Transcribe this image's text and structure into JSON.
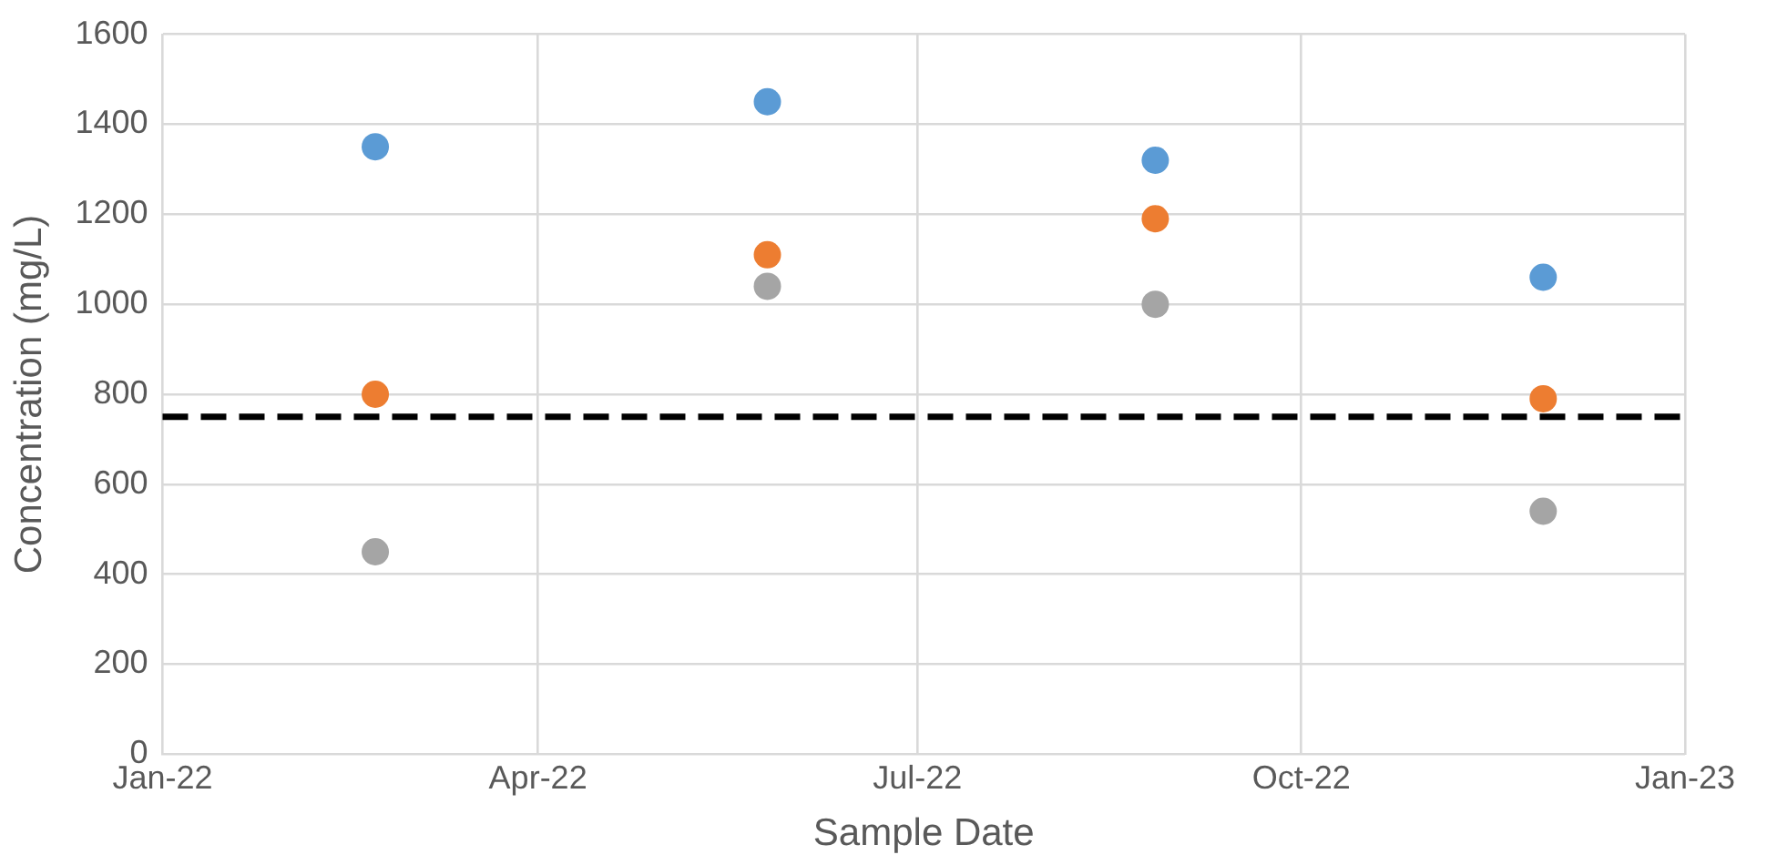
{
  "chart_data": {
    "type": "scatter",
    "xlabel": "Sample Date",
    "ylabel": "Concentration (mg/L)",
    "x": [
      "2022-02-21",
      "2022-05-26",
      "2022-08-27",
      "2022-11-28"
    ],
    "series": [
      {
        "color": "#5b9bd5",
        "values": [
          1350,
          1450,
          1320,
          1060
        ]
      },
      {
        "color": "#ed7d31",
        "values": [
          800,
          1110,
          1190,
          790
        ]
      },
      {
        "color": "#a5a5a5",
        "values": [
          450,
          1040,
          1000,
          540
        ]
      }
    ],
    "xlim": [
      "2022-01-01",
      "2023-01-01"
    ],
    "xticks": [
      {
        "value": "2022-01-01",
        "label": "Jan-22"
      },
      {
        "value": "2022-04-01",
        "label": "Apr-22"
      },
      {
        "value": "2022-07-01",
        "label": "Jul-22"
      },
      {
        "value": "2022-10-01",
        "label": "Oct-22"
      },
      {
        "value": "2023-01-01",
        "label": "Jan-23"
      }
    ],
    "ylim": [
      0,
      1600
    ],
    "yticks": [
      0,
      200,
      400,
      600,
      800,
      1000,
      1200,
      1400,
      1600
    ],
    "ref_lines": [
      {
        "axis": "y",
        "value": 750,
        "color": "#000000",
        "line_style": "dashed"
      }
    ],
    "grid": true,
    "legend": false,
    "marker": "circle"
  }
}
